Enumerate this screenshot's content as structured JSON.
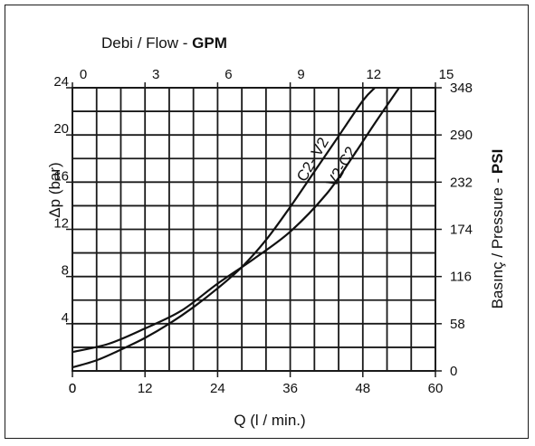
{
  "chart_data": {
    "type": "line",
    "title": "",
    "top_axis": {
      "label_parts": [
        "Debi",
        " / Flow - ",
        "GPM"
      ],
      "range": [
        0,
        15
      ],
      "ticks": [
        "0",
        "3",
        "6",
        "9",
        "12",
        "15"
      ]
    },
    "xlabel": "Q (l / min.)",
    "xlim": [
      0,
      60
    ],
    "xticks": [
      "0",
      "12",
      "24",
      "36",
      "48",
      "60"
    ],
    "ylabel": "Δp (bar)",
    "ylim": [
      0,
      24
    ],
    "yticks": [
      "4",
      "8",
      "12",
      "16",
      "20",
      "24"
    ],
    "y_origin_label": "0",
    "right_axis": {
      "label_parts": [
        "Basınç",
        " / Pressure - ",
        "PSI"
      ],
      "range": [
        0,
        348
      ],
      "ticks": [
        "0",
        "58",
        "116",
        "174",
        "232",
        "290",
        "348"
      ]
    },
    "grid": true,
    "series": [
      {
        "name": "C2- V2",
        "x": [
          0,
          4,
          8,
          12,
          16,
          20,
          24,
          28,
          32,
          36,
          40,
          44,
          48,
          50
        ],
        "y": [
          0.3,
          0.9,
          1.8,
          2.8,
          4.0,
          5.4,
          7.0,
          8.8,
          11.1,
          13.9,
          16.9,
          19.9,
          22.9,
          24.0
        ]
      },
      {
        "name": "V2-C2",
        "x": [
          0,
          6,
          12,
          18,
          24,
          30,
          36,
          42,
          46,
          50,
          54
        ],
        "y": [
          1.6,
          2.3,
          3.6,
          5.1,
          7.4,
          9.5,
          11.8,
          15.0,
          17.9,
          21.0,
          24.0
        ]
      }
    ]
  }
}
